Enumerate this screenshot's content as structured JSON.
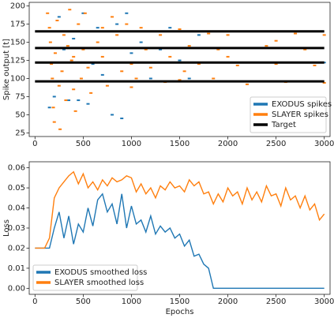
{
  "chart_data": [
    {
      "type": "scatter",
      "ylabel": "Spike output [t]",
      "xlim": [
        -60,
        3060
      ],
      "ylim": [
        20,
        205
      ],
      "xticks": [
        0,
        500,
        1000,
        1500,
        2000,
        2500,
        3000
      ],
      "yticks": [
        25,
        50,
        75,
        100,
        125,
        150,
        175,
        200
      ],
      "legend": "lower right",
      "series": [
        {
          "name": "EXODUS spikes",
          "color": "#1f77b4",
          "x": [
            150,
            200,
            250,
            300,
            350,
            400,
            450,
            500,
            550,
            600,
            650,
            700,
            800,
            850,
            900,
            950,
            1000,
            1100,
            1200,
            1300,
            1400,
            1500,
            1600,
            1700,
            1800,
            2000,
            2500,
            3000,
            2200,
            2800
          ],
          "values": [
            60,
            75,
            185,
            140,
            70,
            155,
            70,
            190,
            65,
            120,
            170,
            105,
            50,
            175,
            45,
            190,
            135,
            150,
            100,
            140,
            170,
            125,
            100,
            160,
            122,
            142,
            165,
            122,
            96,
            142
          ]
        },
        {
          "name": "SLAYER spikes",
          "color": "#ff7f0e",
          "x": [
            130,
            150,
            160,
            170,
            180,
            190,
            200,
            210,
            230,
            250,
            260,
            280,
            300,
            320,
            340,
            360,
            380,
            400,
            420,
            450,
            480,
            500,
            520,
            550,
            580,
            600,
            650,
            700,
            750,
            800,
            850,
            900,
            950,
            1000,
            1050,
            1100,
            1150,
            1200,
            1300,
            1350,
            1400,
            1500,
            1550,
            1600,
            1700,
            1800,
            1850,
            1900,
            2000,
            2100,
            2200,
            2300,
            2400,
            2500,
            2600,
            2700,
            2800,
            2900,
            3000,
            3000,
            2500,
            2000,
            1500,
            1000,
            700,
            400
          ],
          "values": [
            190,
            170,
            150,
            120,
            100,
            60,
            40,
            135,
            180,
            90,
            30,
            110,
            160,
            70,
            145,
            195,
            125,
            85,
            55,
            175,
            100,
            140,
            190,
            115,
            80,
            165,
            150,
            130,
            90,
            185,
            160,
            110,
            175,
            120,
            100,
            170,
            140,
            115,
            160,
            95,
            130,
            168,
            110,
            145,
            120,
            162,
            100,
            140,
            160,
            118,
            92,
            165,
            145,
            120,
            95,
            162,
            140,
            118,
            160,
            94,
            152,
            130,
            98,
            88,
            170,
            130
          ]
        },
        {
          "name": "Target",
          "color": "#000000",
          "x_range": [
            0,
            3000
          ],
          "values": [
            165,
            142,
            122,
            96
          ]
        }
      ]
    },
    {
      "type": "line",
      "ylabel": "Loss",
      "xlabel": "Epochs",
      "xlim": [
        -60,
        3060
      ],
      "ylim": [
        -0.003,
        0.063
      ],
      "xticks": [
        0,
        500,
        1000,
        1500,
        2000,
        2500,
        3000
      ],
      "yticks": [
        {
          "value": 0,
          "label": "0.00"
        },
        {
          "value": 0.01,
          "label": "0.01"
        },
        {
          "value": 0.02,
          "label": "0.02"
        },
        {
          "value": 0.03,
          "label": "0.03"
        },
        {
          "value": 0.04,
          "label": "0.04"
        },
        {
          "value": 0.05,
          "label": "0.05"
        },
        {
          "value": 0.06,
          "label": "0.06"
        }
      ],
      "legend": "lower left",
      "x": [
        0,
        50,
        100,
        150,
        200,
        250,
        300,
        350,
        400,
        450,
        500,
        550,
        600,
        650,
        700,
        750,
        800,
        850,
        900,
        950,
        1000,
        1050,
        1100,
        1150,
        1200,
        1250,
        1300,
        1350,
        1400,
        1450,
        1500,
        1550,
        1600,
        1650,
        1700,
        1750,
        1800,
        1850,
        1900,
        1950,
        2000,
        2050,
        2100,
        2150,
        2200,
        2250,
        2300,
        2350,
        2400,
        2450,
        2500,
        2550,
        2600,
        2650,
        2700,
        2750,
        2800,
        2850,
        2900,
        2950,
        3000
      ],
      "series": [
        {
          "name": "EXODUS smoothed loss",
          "color": "#1f77b4",
          "values": [
            0.02,
            0.02,
            0.02,
            0.02,
            0.03,
            0.038,
            0.025,
            0.036,
            0.022,
            0.032,
            0.028,
            0.04,
            0.031,
            0.044,
            0.047,
            0.038,
            0.042,
            0.032,
            0.047,
            0.03,
            0.041,
            0.032,
            0.034,
            0.028,
            0.036,
            0.027,
            0.031,
            0.028,
            0.03,
            0.025,
            0.027,
            0.021,
            0.024,
            0.016,
            0.017,
            0.012,
            0.01,
            0,
            0,
            0,
            0,
            0,
            0,
            0,
            0,
            0,
            0,
            0,
            0,
            0,
            0,
            0,
            0,
            0,
            0,
            0,
            0,
            0,
            0,
            0,
            0
          ]
        },
        {
          "name": "SLAYER smoothed loss",
          "color": "#ff7f0e",
          "values": [
            0.02,
            0.02,
            0.02,
            0.025,
            0.045,
            0.05,
            0.053,
            0.056,
            0.058,
            0.052,
            0.057,
            0.05,
            0.053,
            0.049,
            0.054,
            0.051,
            0.055,
            0.053,
            0.054,
            0.056,
            0.055,
            0.048,
            0.052,
            0.047,
            0.05,
            0.045,
            0.051,
            0.049,
            0.053,
            0.05,
            0.051,
            0.048,
            0.054,
            0.051,
            0.053,
            0.047,
            0.048,
            0.042,
            0.047,
            0.043,
            0.05,
            0.046,
            0.048,
            0.042,
            0.05,
            0.044,
            0.048,
            0.043,
            0.051,
            0.046,
            0.047,
            0.041,
            0.05,
            0.044,
            0.046,
            0.04,
            0.046,
            0.039,
            0.042,
            0.034,
            0.037
          ]
        }
      ]
    }
  ]
}
